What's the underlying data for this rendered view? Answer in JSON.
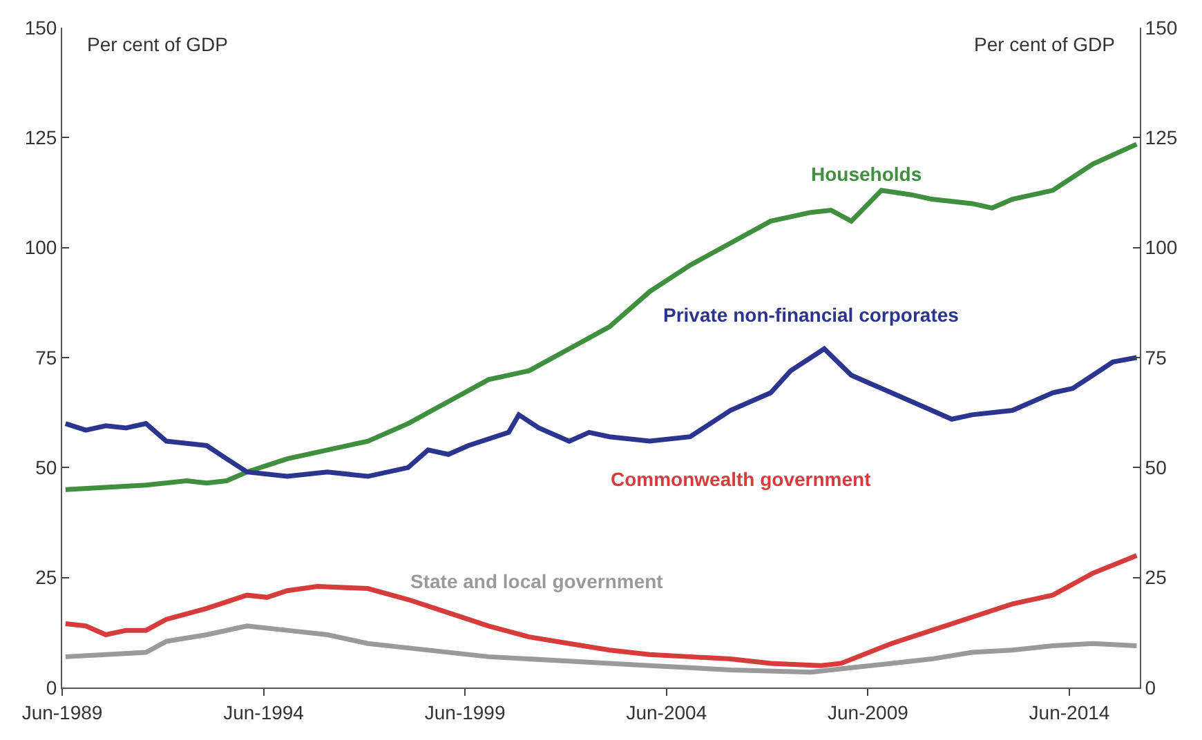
{
  "chart_data": {
    "type": "line",
    "ylabel": "Per cent of GDP",
    "y2label": "Per cent of GDP",
    "xlim": [
      "1989-06",
      "2016-03"
    ],
    "xticks": [
      {
        "value": "1989-06",
        "label": "Jun-1989"
      },
      {
        "value": "1994-06",
        "label": "Jun-1994"
      },
      {
        "value": "1999-06",
        "label": "Jun-1999"
      },
      {
        "value": "2004-06",
        "label": "Jun-2004"
      },
      {
        "value": "2009-06",
        "label": "Jun-2009"
      },
      {
        "value": "2014-06",
        "label": "Jun-2014"
      }
    ],
    "ylim": [
      0,
      150
    ],
    "yticks": [
      0,
      25,
      50,
      75,
      100,
      125,
      150
    ],
    "y2lim": [
      0,
      150
    ],
    "y2ticks": [
      0,
      25,
      50,
      75,
      100,
      125,
      150
    ],
    "legend": false,
    "marker": "none",
    "line_style": "solid",
    "series": [
      {
        "name": "Households",
        "color": "#3f8f3f",
        "x": [
          "1989-07",
          "1990-07",
          "1991-07",
          "1992-07",
          "1993-01",
          "1993-07",
          "1994-01",
          "1995-01",
          "1996-01",
          "1997-01",
          "1998-01",
          "1999-01",
          "2000-01",
          "2001-01",
          "2002-01",
          "2003-01",
          "2004-01",
          "2005-01",
          "2006-01",
          "2007-01",
          "2008-01",
          "2008-07",
          "2009-01",
          "2009-10",
          "2010-07",
          "2011-01",
          "2012-01",
          "2012-07",
          "2013-01",
          "2014-01",
          "2015-01",
          "2016-02"
        ],
        "values": [
          45,
          45.5,
          46,
          47,
          46.5,
          47,
          49,
          52,
          54,
          56,
          60,
          65,
          70,
          72,
          77,
          82,
          90,
          96,
          101,
          106,
          108,
          108.5,
          106,
          113,
          112,
          111,
          110,
          109,
          111,
          113,
          119,
          123.5
        ]
      },
      {
        "name": "Private non-financial corporates",
        "color": "#2b358f",
        "x": [
          "1989-07",
          "1990-01",
          "1990-07",
          "1991-01",
          "1991-07",
          "1992-01",
          "1993-01",
          "1993-07",
          "1994-01",
          "1995-01",
          "1996-01",
          "1997-01",
          "1998-01",
          "1998-07",
          "1999-01",
          "1999-07",
          "2000-07",
          "2000-10",
          "2001-04",
          "2002-01",
          "2002-07",
          "2003-01",
          "2004-01",
          "2005-01",
          "2006-01",
          "2007-01",
          "2007-07",
          "2008-01",
          "2008-05",
          "2009-01",
          "2009-07",
          "2010-01",
          "2011-01",
          "2011-07",
          "2012-01",
          "2013-01",
          "2014-01",
          "2014-07",
          "2015-01",
          "2015-07",
          "2016-02"
        ],
        "values": [
          60,
          58.5,
          59.5,
          59,
          60,
          56,
          55,
          52,
          49,
          48,
          49,
          48,
          50,
          54,
          53,
          55,
          58,
          62,
          59,
          56,
          58,
          57,
          56,
          57,
          63,
          67,
          72,
          75,
          77,
          71,
          69,
          67,
          63,
          61,
          62,
          63,
          67,
          68,
          71,
          74,
          75
        ]
      },
      {
        "name": "Commonwealth government",
        "color": "#d63c3c",
        "x": [
          "1989-07",
          "1990-01",
          "1990-07",
          "1991-01",
          "1991-07",
          "1992-01",
          "1993-01",
          "1994-01",
          "1994-07",
          "1995-01",
          "1995-10",
          "1997-01",
          "1998-01",
          "1999-01",
          "2000-01",
          "2001-01",
          "2002-01",
          "2003-01",
          "2004-01",
          "2005-01",
          "2006-01",
          "2007-01",
          "2008-04",
          "2008-10",
          "2010-01",
          "2011-01",
          "2012-01",
          "2013-01",
          "2014-01",
          "2015-01",
          "2016-02"
        ],
        "values": [
          14.5,
          14,
          12,
          13,
          13,
          15.5,
          18,
          21,
          20.5,
          22,
          23,
          22.5,
          20,
          17,
          14,
          11.5,
          10,
          8.5,
          7.5,
          7,
          6.5,
          5.5,
          5,
          5.5,
          10,
          13,
          16,
          19,
          21,
          26,
          30
        ]
      },
      {
        "name": "State and local government",
        "color": "#9a9a9a",
        "x": [
          "1989-07",
          "1990-07",
          "1991-07",
          "1992-01",
          "1993-01",
          "1994-01",
          "1995-01",
          "1996-01",
          "1997-01",
          "1998-01",
          "2000-01",
          "2002-01",
          "2004-01",
          "2006-01",
          "2008-01",
          "2009-01",
          "2010-01",
          "2011-01",
          "2012-01",
          "2013-01",
          "2014-01",
          "2015-01",
          "2016-02"
        ],
        "values": [
          7,
          7.5,
          8,
          10.5,
          12,
          14,
          13,
          12,
          10,
          9,
          7,
          6,
          5,
          4,
          3.5,
          4.5,
          5.5,
          6.5,
          8,
          8.5,
          9.5,
          10,
          9.5
        ]
      }
    ]
  }
}
